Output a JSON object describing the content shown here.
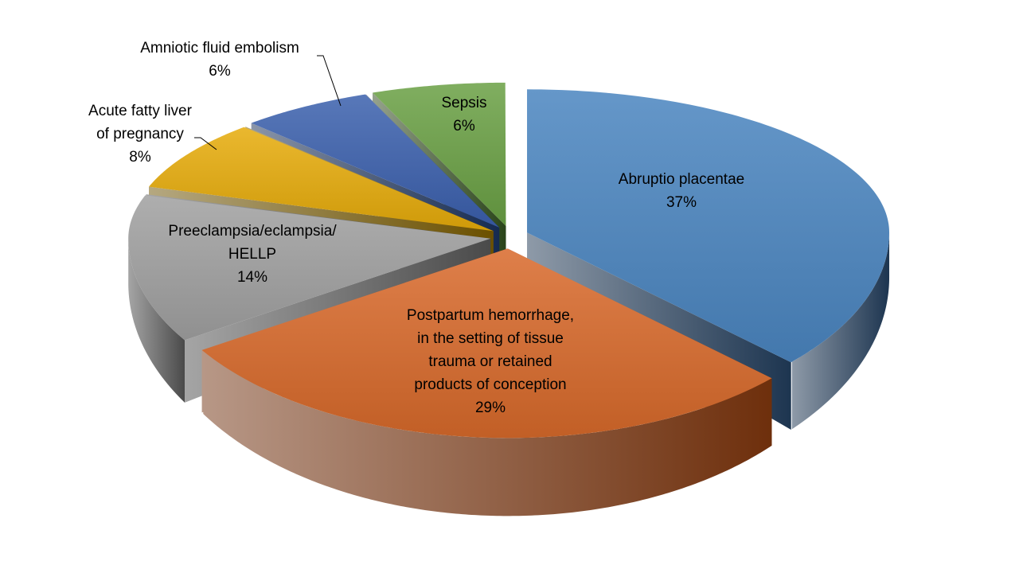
{
  "chart_data": {
    "type": "pie",
    "style": "3d-exploded",
    "categories": [
      "Abruptio placentae",
      "Postpartum hemorrhage, in the setting of tissue trauma or retained products of conception",
      "Preeclampsia/eclampsia/ HELLP",
      "Acute fatty liver of pregnancy",
      "Amniotic fluid embolism",
      "Sepsis"
    ],
    "values": [
      37,
      29,
      14,
      8,
      6,
      6
    ],
    "unit": "%",
    "slices": [
      {
        "lines": [
          "Abruptio placentae"
        ],
        "pct": "37%",
        "color": "#4a85c0",
        "wall": "#1d3550"
      },
      {
        "lines": [
          "Postpartum hemorrhage,",
          "in the setting of tissue",
          "trauma or retained",
          "products of conception"
        ],
        "pct": "29%",
        "color": "#d8692a",
        "wall": "#6e2f0c"
      },
      {
        "lines": [
          "Preeclampsia/eclampsia/",
          "HELLP"
        ],
        "pct": "14%",
        "color": "#a0a0a0",
        "wall": "#4a4a4a"
      },
      {
        "lines": [
          "Acute fatty liver",
          "of pregnancy"
        ],
        "pct": "8%",
        "color": "#e6ab0a",
        "wall": "#6b5000"
      },
      {
        "lines": [
          "Amniotic fluid embolism"
        ],
        "pct": "6%",
        "color": "#3b60ad",
        "wall": "#152a50"
      },
      {
        "lines": [
          "Sepsis"
        ],
        "pct": "6%",
        "color": "#6aa044",
        "wall": "#2a4419"
      }
    ],
    "legend": "none",
    "data_labels": "category and percentage"
  }
}
